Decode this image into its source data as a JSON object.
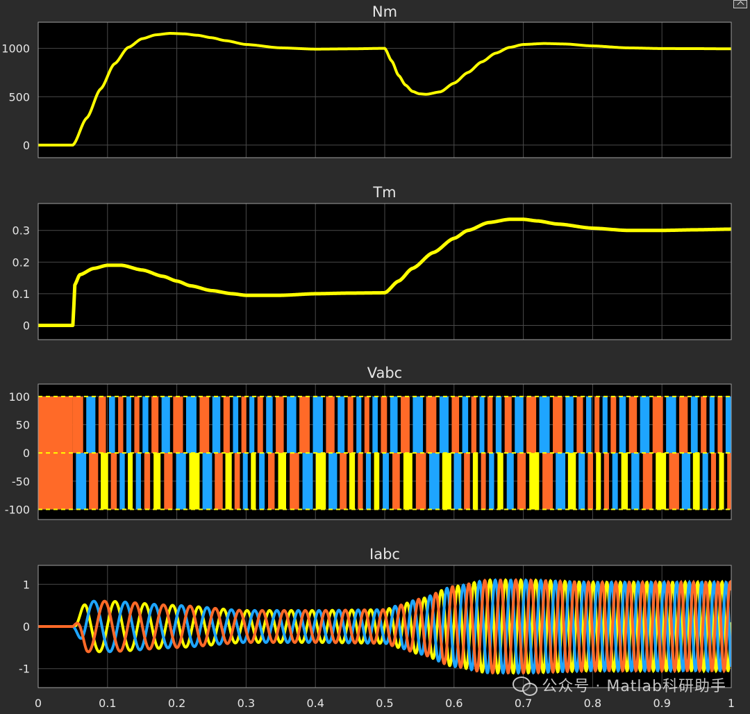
{
  "chart_data": [
    {
      "type": "line",
      "title": "Nm",
      "xlim": [
        0,
        1
      ],
      "ylim": [
        -130,
        1270
      ],
      "x_ticks": [
        0,
        0.1,
        0.2,
        0.3,
        0.4,
        0.5,
        0.6,
        0.7,
        0.8,
        0.9,
        1
      ],
      "y_ticks": [
        0,
        500,
        1000
      ],
      "y_tick_labels": [
        "0",
        "500",
        "1000"
      ],
      "grid": true,
      "series": [
        {
          "color": "#ffff00",
          "x": [
            0,
            0.05,
            0.07,
            0.09,
            0.11,
            0.13,
            0.15,
            0.17,
            0.19,
            0.21,
            0.23,
            0.25,
            0.27,
            0.3,
            0.35,
            0.4,
            0.45,
            0.5,
            0.51,
            0.52,
            0.53,
            0.54,
            0.55,
            0.56,
            0.58,
            0.6,
            0.62,
            0.64,
            0.66,
            0.68,
            0.7,
            0.73,
            0.76,
            0.8,
            0.85,
            0.9,
            0.95,
            1
          ],
          "y": [
            0,
            0,
            280,
            580,
            840,
            1010,
            1100,
            1140,
            1155,
            1150,
            1135,
            1110,
            1080,
            1040,
            1005,
            992,
            995,
            1000,
            870,
            720,
            620,
            555,
            530,
            525,
            550,
            640,
            750,
            860,
            950,
            1010,
            1040,
            1050,
            1045,
            1025,
            1005,
            998,
            997,
            995
          ]
        }
      ]
    },
    {
      "type": "line",
      "title": "Tm",
      "xlim": [
        0,
        1
      ],
      "ylim": [
        -0.045,
        0.385
      ],
      "x_ticks": [
        0,
        0.1,
        0.2,
        0.3,
        0.4,
        0.5,
        0.6,
        0.7,
        0.8,
        0.9,
        1
      ],
      "y_ticks": [
        0,
        0.1,
        0.2,
        0.3
      ],
      "y_tick_labels": [
        "0",
        "0.1",
        "0.2",
        "0.3"
      ],
      "grid": true,
      "series": [
        {
          "color": "#ffff00",
          "x": [
            0,
            0.05,
            0.053,
            0.06,
            0.08,
            0.1,
            0.12,
            0.15,
            0.18,
            0.2,
            0.22,
            0.25,
            0.28,
            0.3,
            0.35,
            0.4,
            0.45,
            0.5,
            0.52,
            0.54,
            0.57,
            0.6,
            0.62,
            0.65,
            0.68,
            0.7,
            0.72,
            0.75,
            0.8,
            0.85,
            0.9,
            0.95,
            1
          ],
          "y": [
            0,
            0,
            0.13,
            0.16,
            0.18,
            0.19,
            0.19,
            0.175,
            0.155,
            0.14,
            0.125,
            0.11,
            0.1,
            0.095,
            0.095,
            0.1,
            0.102,
            0.103,
            0.14,
            0.18,
            0.23,
            0.275,
            0.3,
            0.325,
            0.335,
            0.335,
            0.33,
            0.32,
            0.307,
            0.3,
            0.3,
            0.302,
            0.304
          ]
        }
      ]
    },
    {
      "type": "line",
      "title": "Vabc",
      "xlim": [
        0,
        1
      ],
      "ylim": [
        -118,
        122
      ],
      "x_ticks": [
        0,
        0.1,
        0.2,
        0.3,
        0.4,
        0.5,
        0.6,
        0.7,
        0.8,
        0.9,
        1
      ],
      "y_ticks": [
        -100,
        -50,
        0,
        50,
        100
      ],
      "y_tick_labels": [
        "-100",
        "-50",
        "0",
        "50",
        "100"
      ],
      "grid": true,
      "levels": [
        -100,
        0,
        100
      ],
      "phase_colors": [
        "#ffff00",
        "#1ea5ff",
        "#ff6a28"
      ]
    },
    {
      "type": "line",
      "title": "Iabc",
      "xlim": [
        0,
        1
      ],
      "ylim": [
        -1.45,
        1.45
      ],
      "x_ticks": [
        0,
        0.1,
        0.2,
        0.3,
        0.4,
        0.5,
        0.6,
        0.7,
        0.8,
        0.9,
        1
      ],
      "x_tick_labels": [
        "0",
        "0.1",
        "0.2",
        "0.3",
        "0.4",
        "0.5",
        "0.6",
        "0.7",
        "0.8",
        "0.9",
        "1"
      ],
      "y_ticks": [
        -1,
        0,
        1
      ],
      "y_tick_labels": [
        "-1",
        "0",
        "1"
      ],
      "grid": true,
      "phase_colors": [
        "#ffff00",
        "#1ea5ff",
        "#ff6a28"
      ],
      "amplitude_envelope": {
        "t": [
          0,
          0.05,
          0.07,
          0.1,
          0.2,
          0.3,
          0.4,
          0.5,
          0.52,
          0.55,
          0.6,
          0.65,
          0.7,
          0.8,
          0.9,
          1
        ],
        "a": [
          0,
          0,
          0.6,
          0.6,
          0.5,
          0.38,
          0.38,
          0.4,
          0.5,
          0.65,
          0.95,
          1.1,
          1.1,
          1.05,
          1.05,
          1.05
        ]
      }
    }
  ],
  "watermark": {
    "text": "公众号 · Matlab科研助手",
    "icon": "wechat-icon"
  },
  "toolbar": {
    "icon": "undock-icon"
  }
}
